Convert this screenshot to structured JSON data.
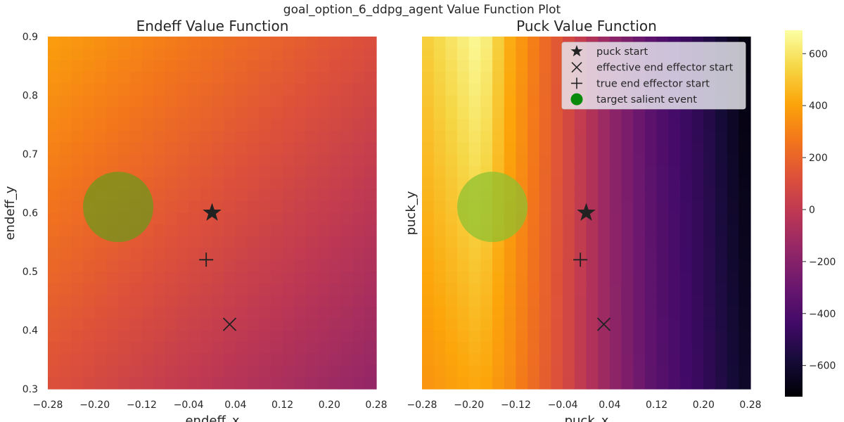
{
  "suptitle": "goal_option_6_ddpg_agent Value Function Plot",
  "chart_data": {
    "colormap": "inferno",
    "colorbar": {
      "min": -720,
      "max": 690,
      "ticks": [
        600,
        400,
        200,
        0,
        -200,
        -400,
        -600
      ],
      "tick_labels": [
        "600",
        "400",
        "200",
        "0",
        "−200",
        "−400",
        "−600"
      ]
    },
    "legend": {
      "placement": "top-right of second subplot",
      "entries": [
        {
          "label": "puck start",
          "marker": "star",
          "color": "#222222"
        },
        {
          "label": "effective end effector start",
          "marker": "x",
          "color": "#222222"
        },
        {
          "label": "true end effector start",
          "marker": "plus",
          "color": "#222222"
        },
        {
          "label": "target salient event",
          "marker": "circle",
          "color": "#0a8a0a"
        }
      ]
    },
    "subplots": [
      {
        "type": "heatmap",
        "title": "Endeff Value Function",
        "xlabel": "endeff_x",
        "ylabel": "endeff_y",
        "xlim": [
          -0.28,
          0.28
        ],
        "ylim": [
          0.3,
          0.9
        ],
        "xticks": [
          -0.28,
          -0.2,
          -0.12,
          -0.04,
          0.04,
          0.12,
          0.2,
          0.28
        ],
        "xtick_labels": [
          "−0.28",
          "−0.20",
          "−0.12",
          "−0.04",
          "0.04",
          "0.12",
          "0.20",
          "0.28"
        ],
        "yticks": [
          0.3,
          0.4,
          0.5,
          0.6,
          0.7,
          0.8,
          0.9
        ],
        "ytick_labels": [
          "0.3",
          "0.4",
          "0.5",
          "0.6",
          "0.7",
          "0.8",
          "0.9"
        ],
        "grid_size": [
          28,
          30
        ],
        "value_model": {
          "type": "linear",
          "base": 115,
          "coef_x": -500,
          "coef_y": 450,
          "x0": 0,
          "y0": 0.6
        },
        "markers": {
          "puck_start": [
            0.0,
            0.6
          ],
          "effective_end_effector_start": [
            0.03,
            0.41
          ],
          "true_end_effector_start": [
            -0.01,
            0.52
          ],
          "target_salient_event": {
            "center": [
              -0.16,
              0.61
            ],
            "radius": 0.06,
            "color": "#6a9a1a"
          }
        }
      },
      {
        "type": "heatmap",
        "title": "Puck Value Function",
        "xlabel": "puck_x",
        "ylabel": "puck_y",
        "xlim": [
          -0.28,
          0.28
        ],
        "ylim": [
          0.3,
          0.9
        ],
        "xticks": [
          -0.28,
          -0.2,
          -0.12,
          -0.04,
          0.04,
          0.12,
          0.2,
          0.28
        ],
        "xtick_labels": [
          "−0.28",
          "−0.20",
          "−0.12",
          "−0.04",
          "0.04",
          "0.12",
          "0.20",
          "0.28"
        ],
        "yticks": [],
        "ytick_labels": [],
        "grid_size": [
          28,
          30
        ],
        "value_model": {
          "type": "column-profile",
          "x_points": [
            -0.28,
            -0.18,
            -0.13,
            -0.04,
            0.04,
            0.12,
            0.2,
            0.28
          ],
          "v_top": [
            510,
            680,
            430,
            120,
            -160,
            -380,
            -520,
            -720
          ],
          "v_bottom": [
            350,
            420,
            330,
            100,
            -150,
            -360,
            -480,
            -640
          ]
        },
        "markers": {
          "puck_start": [
            0.0,
            0.6
          ],
          "effective_end_effector_start": [
            0.03,
            0.41
          ],
          "true_end_effector_start": [
            -0.01,
            0.52
          ],
          "target_salient_event": {
            "center": [
              -0.16,
              0.61
            ],
            "radius": 0.06,
            "color": "#8ac030"
          }
        }
      }
    ]
  }
}
